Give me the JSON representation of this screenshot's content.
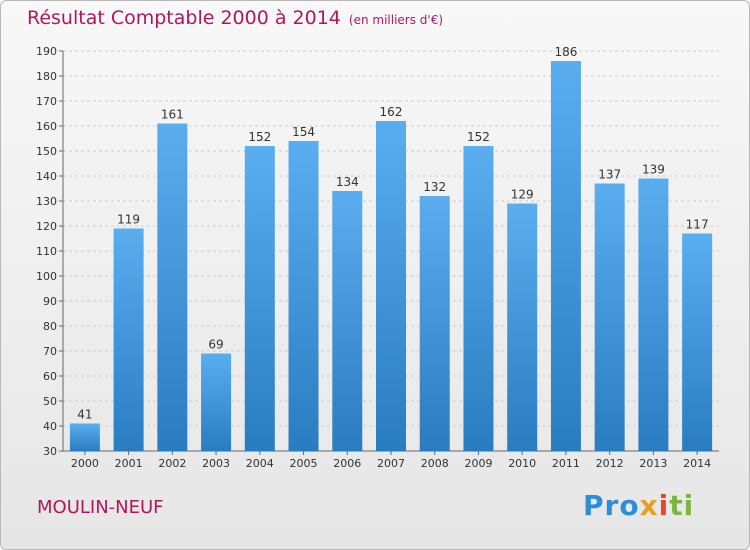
{
  "header": {
    "title": "Résultat Comptable 2000 à 2014",
    "subtitle": "(en milliers d'€)"
  },
  "footer": {
    "city": "MOULIN-NEUF",
    "logo": [
      "Pro",
      "x",
      "i",
      "ti"
    ]
  },
  "colors": {
    "title": "#b0185a",
    "bar_top": "#5aaef0",
    "bar_bottom": "#2a7cc0",
    "grid": "#cfcfcf"
  },
  "chart_data": {
    "type": "bar",
    "title": "Résultat Comptable 2000 à 2014",
    "subtitle": "(en milliers d'€)",
    "categories": [
      "2000",
      "2001",
      "2002",
      "2003",
      "2004",
      "2005",
      "2006",
      "2007",
      "2008",
      "2009",
      "2010",
      "2011",
      "2012",
      "2013",
      "2014"
    ],
    "values": [
      41,
      119,
      161,
      69,
      152,
      154,
      134,
      162,
      132,
      152,
      129,
      186,
      137,
      139,
      117
    ],
    "ylim": [
      30,
      190
    ],
    "yticks": [
      30,
      40,
      50,
      60,
      70,
      80,
      90,
      100,
      110,
      120,
      130,
      140,
      150,
      160,
      170,
      180,
      190
    ],
    "grid": true,
    "xlabel": "",
    "ylabel": ""
  }
}
